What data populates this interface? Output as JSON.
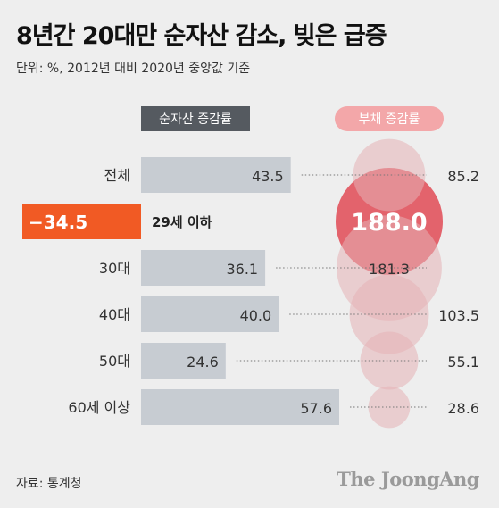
{
  "title": "8년간 20대만 순자산 감소, 빚은 급증",
  "subtitle": "단위: %, 2012년 대비 2020년 중앙값 기준",
  "source": "자료: 통계청",
  "brand": "The JoongAng",
  "colors": {
    "background": "#eeeeee",
    "bar": "#c7ccd2",
    "negative_bar": "#f15a24",
    "header_dark": "#555a60",
    "bubble": "#e6b2b6",
    "bubble_highlight": "#e14a55",
    "debt_header": "#f3a7a9"
  },
  "chart_data": {
    "type": "bar",
    "left_header": "순자산 증감률",
    "right_header": "부채 증감률",
    "categories": [
      "전체",
      "29세 이하",
      "30대",
      "40대",
      "50대",
      "60세 이상"
    ],
    "highlight_category": "29세 이하",
    "series": [
      {
        "name": "순자산 증감률",
        "values": [
          43.5,
          -34.5,
          36.1,
          40.0,
          24.6,
          57.6
        ],
        "labels": [
          "43.5",
          "−34.5",
          "36.1",
          "40.0",
          "24.6",
          "57.6"
        ]
      },
      {
        "name": "부채 증감률",
        "values": [
          85.2,
          188.0,
          181.3,
          103.5,
          55.1,
          28.6
        ],
        "labels": [
          "85.2",
          "188.0",
          "181.3",
          "103.5",
          "55.1",
          "28.6"
        ]
      }
    ]
  }
}
